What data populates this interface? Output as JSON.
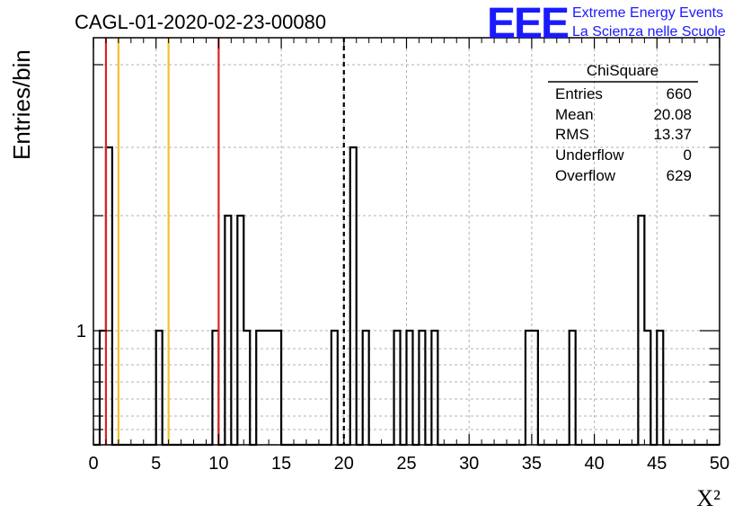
{
  "chart_data": {
    "type": "bar",
    "title": "CAGL-01-2020-02-23-00080",
    "xlabel": "X²",
    "ylabel": "Entries/bin",
    "xlim": [
      0,
      50
    ],
    "x_ticks": [
      0,
      5,
      10,
      15,
      20,
      25,
      30,
      35,
      40,
      45,
      50
    ],
    "y_scale": "log",
    "y_tick_labels": [
      "1"
    ],
    "grid": true,
    "bin_width": 0.5,
    "bins": [
      {
        "x": 0.5,
        "value": 1
      },
      {
        "x": 1.0,
        "value": 3
      },
      {
        "x": 5.0,
        "value": 1
      },
      {
        "x": 9.5,
        "value": 1
      },
      {
        "x": 10.5,
        "value": 2
      },
      {
        "x": 11.5,
        "value": 2
      },
      {
        "x": 12.0,
        "value": 1
      },
      {
        "x": 13.0,
        "value": 1
      },
      {
        "x": 13.5,
        "value": 1
      },
      {
        "x": 14.0,
        "value": 1
      },
      {
        "x": 14.5,
        "value": 1
      },
      {
        "x": 19.0,
        "value": 1
      },
      {
        "x": 20.5,
        "value": 3
      },
      {
        "x": 21.5,
        "value": 1
      },
      {
        "x": 24.0,
        "value": 1
      },
      {
        "x": 25.0,
        "value": 1
      },
      {
        "x": 26.0,
        "value": 1
      },
      {
        "x": 27.0,
        "value": 1
      },
      {
        "x": 34.5,
        "value": 1
      },
      {
        "x": 35.0,
        "value": 1
      },
      {
        "x": 38.0,
        "value": 1
      },
      {
        "x": 43.5,
        "value": 2
      },
      {
        "x": 44.0,
        "value": 1
      },
      {
        "x": 45.0,
        "value": 1
      }
    ],
    "vertical_lines": [
      {
        "x": 1.0,
        "color": "#dd2222",
        "style": "solid"
      },
      {
        "x": 2.0,
        "color": "#f2c12e",
        "style": "solid"
      },
      {
        "x": 6.0,
        "color": "#f2c12e",
        "style": "solid"
      },
      {
        "x": 10.0,
        "color": "#dd2222",
        "style": "solid"
      },
      {
        "x": 20.0,
        "color": "#000000",
        "style": "dashed"
      }
    ],
    "stats_box": {
      "name": "ChiSquare",
      "rows": [
        {
          "label": "Entries",
          "value": "660"
        },
        {
          "label": "Mean",
          "value": "20.08"
        },
        {
          "label": "RMS",
          "value": "13.37"
        },
        {
          "label": "Underflow",
          "value": "0"
        },
        {
          "label": "Overflow",
          "value": "629"
        }
      ],
      "placement": "top-right"
    }
  },
  "logo": {
    "mark": "EEE",
    "line1": "Extreme Energy Events",
    "line2": "La Scienza nelle Scuole",
    "color": "#1a1aff"
  }
}
